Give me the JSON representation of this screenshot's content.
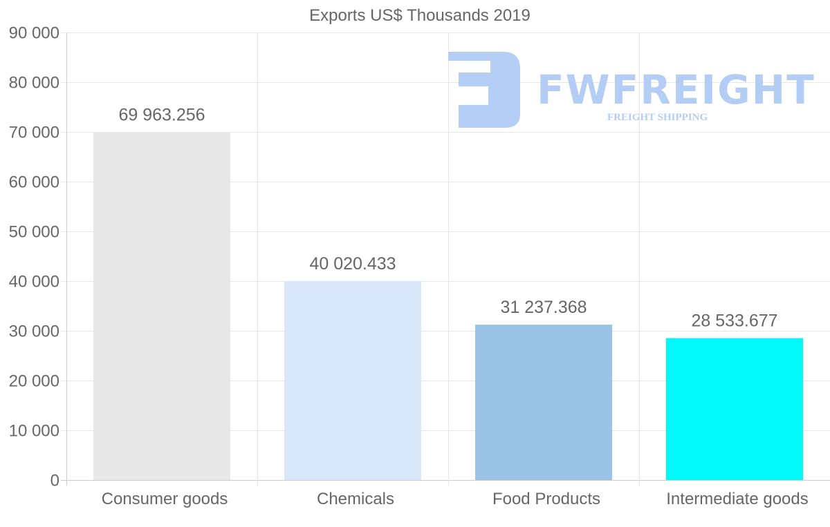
{
  "chart_data": {
    "type": "bar",
    "title": "Exports US$ Thousands 2019",
    "categories": [
      "Consumer goods",
      "Chemicals",
      "Food Products",
      "Intermediate goods"
    ],
    "values": [
      69963.256,
      40020.433,
      31237.368,
      28533.677
    ],
    "data_labels": [
      "69 963.256",
      "40 020.433",
      "31 237.368",
      "28 533.677"
    ],
    "colors": [
      "#e8e8e8",
      "#d8e8f8",
      "#9bc3e6",
      "#00f8f8"
    ],
    "ylim": [
      0,
      90000
    ],
    "yticks": [
      0,
      10000,
      20000,
      30000,
      40000,
      50000,
      60000,
      70000,
      80000,
      90000
    ],
    "ytick_labels": [
      "0",
      "10 000",
      "20 000",
      "30 000",
      "40 000",
      "50 000",
      "60 000",
      "70 000",
      "80 000",
      "90 000"
    ],
    "xlabel": "",
    "ylabel": "",
    "grid": true,
    "legend": "none"
  },
  "watermark": {
    "brand": "FWFREIGHT",
    "tagline": "FREIGHT SHIPPING"
  }
}
